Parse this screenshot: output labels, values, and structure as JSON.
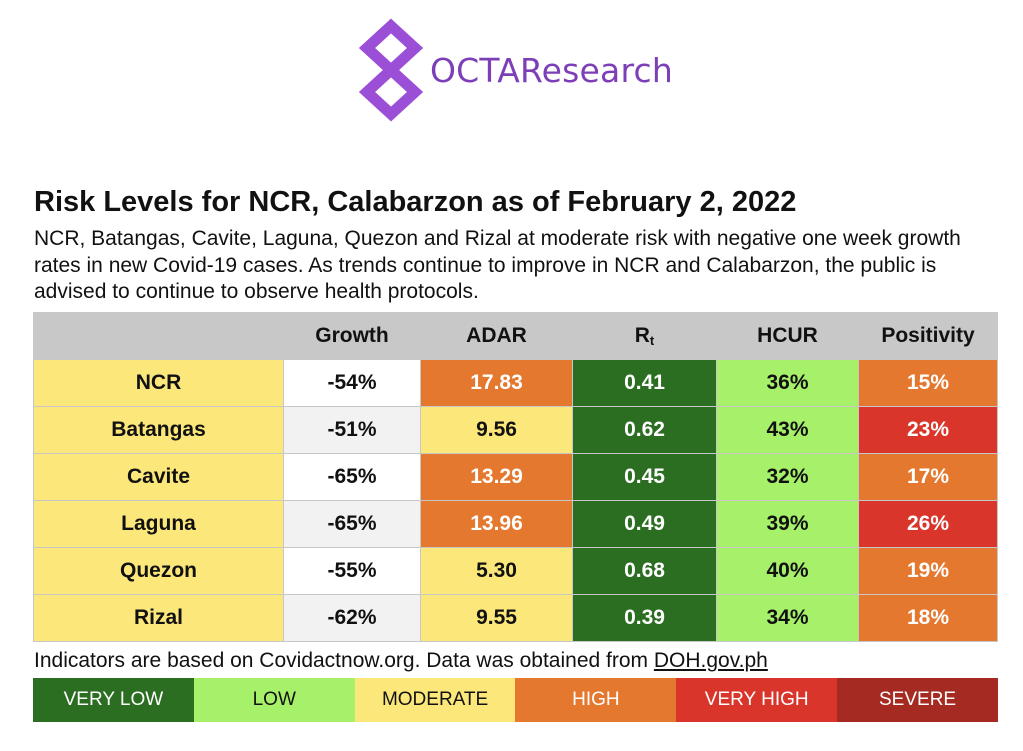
{
  "logo": {
    "text": "OCTAResearch",
    "color": "#7d3fb8"
  },
  "title": "Risk Levels for NCR, Calabarzon as of February 2, 2022",
  "description": "NCR, Batangas, Cavite, Laguna, Quezon and Rizal at moderate risk with negative one week growth rates in new Covid-19 cases. As trends continue to improve in NCR and Calabarzon, the public is advised to continue to observe health protocols.",
  "table": {
    "headers": {
      "area": "",
      "growth": "Growth",
      "adar": "ADAR",
      "rt": "R",
      "rt_sub": "t",
      "hcur": "HCUR",
      "positivity": "Positivity"
    },
    "rows": [
      {
        "area": "NCR",
        "growth": "-54%",
        "adar": "17.83",
        "rt": "0.41",
        "hcur": "36%",
        "positivity": "15%"
      },
      {
        "area": "Batangas",
        "growth": "-51%",
        "adar": "9.56",
        "rt": "0.62",
        "hcur": "43%",
        "positivity": "23%"
      },
      {
        "area": "Cavite",
        "growth": "-65%",
        "adar": "13.29",
        "rt": "0.45",
        "hcur": "32%",
        "positivity": "17%"
      },
      {
        "area": "Laguna",
        "growth": "-65%",
        "adar": "13.96",
        "rt": "0.49",
        "hcur": "39%",
        "positivity": "26%"
      },
      {
        "area": "Quezon",
        "growth": "-55%",
        "adar": "5.30",
        "rt": "0.68",
        "hcur": "40%",
        "positivity": "19%"
      },
      {
        "area": "Rizal",
        "growth": "-62%",
        "adar": "9.55",
        "rt": "0.39",
        "hcur": "34%",
        "positivity": "18%"
      }
    ],
    "cell_risk_levels": {
      "adar": [
        "high",
        "moderate",
        "high",
        "high",
        "moderate",
        "moderate"
      ],
      "rt": [
        "very-low",
        "very-low",
        "very-low",
        "very-low",
        "very-low",
        "very-low"
      ],
      "hcur": [
        "low",
        "low",
        "low",
        "low",
        "low",
        "low"
      ],
      "positivity": [
        "high",
        "very-high",
        "high",
        "very-high",
        "high",
        "high"
      ]
    }
  },
  "footnote": {
    "text": "Indicators are based on Covidactnow.org. Data was obtained from ",
    "link": "DOH.gov.ph"
  },
  "legend": {
    "very_low": "VERY LOW",
    "low": "LOW",
    "moderate": "MODERATE",
    "high": "HIGH",
    "very_high": "VERY HIGH",
    "severe": "SEVERE"
  },
  "colors": {
    "very_low": "#2b6e22",
    "low": "#a6f06a",
    "moderate": "#fbe77a",
    "high": "#e4782f",
    "very_high": "#d9352a",
    "severe": "#a52a21",
    "header_bg": "#c8c8c8"
  }
}
